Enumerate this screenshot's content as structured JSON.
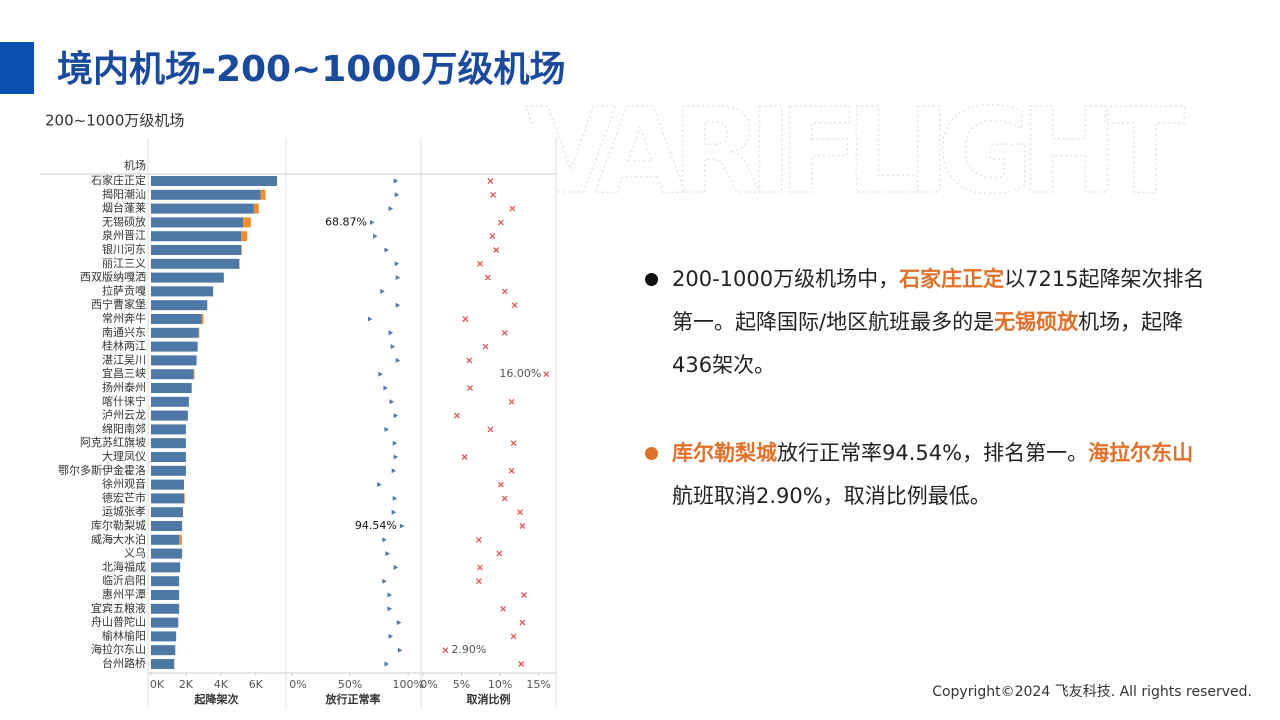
{
  "slide": {
    "title": "境内机场-200~1000万级机场",
    "watermark": "VARIFLIGHT",
    "copyright": "Copyright©2024 飞友科技. All rights reserved.",
    "bullets": [
      [
        {
          "text": "200-1000万级机场中，",
          "highlight": false
        },
        {
          "text": "石家庄正定",
          "highlight": true
        },
        {
          "text": "以7215起降架次排名第一。起降国际/地区航班最多的是",
          "highlight": false
        },
        {
          "text": "无锡硕放",
          "highlight": true
        },
        {
          "text": "机场，起降436架次。",
          "highlight": false
        }
      ],
      [
        {
          "text": "库尔勒梨城",
          "highlight": true
        },
        {
          "text": "放行正常率94.54%，排名第一。",
          "highlight": false
        },
        {
          "text": "海拉尔东山",
          "highlight": true
        },
        {
          "text": "航班取消2.90%，取消比例最低。",
          "highlight": false
        }
      ]
    ]
  },
  "chart_data": [
    {
      "type": "bar",
      "title": "200~1000万级机场",
      "category_header": "机场",
      "xlabel": "起降架次",
      "categories": [
        "石家庄正定",
        "揭阳潮汕",
        "烟台蓬莱",
        "无锡硕放",
        "泉州晋江",
        "银川河东",
        "丽江三义",
        "西双版纳嘎洒",
        "拉萨贡嘎",
        "西宁曹家堡",
        "常州奔牛",
        "南通兴东",
        "桂林两江",
        "湛江吴川",
        "宜昌三峡",
        "扬州泰州",
        "喀什徕宁",
        "泸州云龙",
        "绵阳南郊",
        "阿克苏红旗坡",
        "大理凤仪",
        "鄂尔多斯伊金霍洛",
        "徐州观音",
        "德宏芒市",
        "运城张孝",
        "库尔勒梨城",
        "威海大水泊",
        "义乌",
        "北海福成",
        "临沂启阳",
        "惠州平潭",
        "宜宾五粮液",
        "舟山普陀山",
        "榆林榆阳",
        "海拉尔东山",
        "台州路桥"
      ],
      "series": [
        {
          "color": "#4e79a7",
          "values": [
            7215,
            6280,
            5890,
            5280,
            5170,
            5170,
            5060,
            4170,
            3560,
            3220,
            2890,
            2720,
            2670,
            2610,
            2440,
            2330,
            2170,
            2110,
            2000,
            2000,
            2000,
            2000,
            1890,
            1890,
            1830,
            1780,
            1610,
            1780,
            1670,
            1610,
            1610,
            1610,
            1560,
            1440,
            1390,
            1330
          ]
        },
        {
          "color": "#f28e2b",
          "values": [
            0,
            280,
            280,
            436,
            330,
            30,
            0,
            0,
            0,
            0,
            110,
            50,
            0,
            0,
            50,
            0,
            0,
            0,
            0,
            0,
            0,
            0,
            0,
            40,
            0,
            0,
            170,
            0,
            0,
            0,
            0,
            0,
            0,
            0,
            0,
            0
          ]
        }
      ],
      "xlim": [
        0,
        7500
      ],
      "xticks": [
        {
          "value": 0,
          "label": "0K"
        },
        {
          "value": 2000,
          "label": "2K"
        },
        {
          "value": 4000,
          "label": "4K"
        },
        {
          "value": 6000,
          "label": "6K"
        }
      ]
    },
    {
      "type": "dot",
      "xlabel": "放行正常率",
      "color": "#4e79a7",
      "values": [
        89.2,
        90.1,
        84.8,
        68.87,
        71.5,
        81.3,
        90.1,
        91.0,
        77.7,
        91.0,
        67.1,
        84.8,
        86.6,
        91.0,
        76.0,
        80.4,
        85.7,
        89.2,
        81.3,
        88.4,
        89.2,
        87.5,
        75.1,
        88.4,
        87.5,
        94.54,
        79.5,
        82.2,
        89.2,
        79.5,
        83.9,
        83.9,
        91.9,
        84.8,
        92.8,
        81.3
      ],
      "value_labels": [
        null,
        null,
        null,
        "68.87%",
        null,
        null,
        null,
        null,
        null,
        null,
        null,
        null,
        null,
        null,
        null,
        null,
        null,
        null,
        null,
        null,
        null,
        null,
        null,
        null,
        null,
        "94.54%",
        null,
        null,
        null,
        null,
        null,
        null,
        null,
        null,
        null,
        null
      ],
      "xlim": [
        0,
        105
      ],
      "xticks": [
        {
          "value": 0,
          "label": "0%"
        },
        {
          "value": 50,
          "label": "50%"
        },
        {
          "value": 100,
          "label": "100%"
        }
      ]
    },
    {
      "type": "cross",
      "xlabel": "取消比例",
      "color": "#e15759",
      "values": [
        8.75,
        9.1,
        11.6,
        10.1,
        9.0,
        9.5,
        7.4,
        8.4,
        10.6,
        11.9,
        5.5,
        10.6,
        8.1,
        6.0,
        16.0,
        6.1,
        11.5,
        4.4,
        8.75,
        11.75,
        5.4,
        11.5,
        10.1,
        10.6,
        12.6,
        12.9,
        7.25,
        9.9,
        7.4,
        7.25,
        13.1,
        10.4,
        12.9,
        11.75,
        2.9,
        12.75
      ],
      "value_labels": [
        null,
        null,
        null,
        null,
        null,
        null,
        null,
        null,
        null,
        null,
        null,
        null,
        null,
        null,
        "16.00%",
        null,
        null,
        null,
        null,
        null,
        null,
        null,
        null,
        null,
        null,
        null,
        null,
        null,
        null,
        null,
        null,
        null,
        null,
        null,
        "2.90%",
        null
      ],
      "xlim": [
        0,
        17
      ],
      "xticks": [
        {
          "value": 0,
          "label": "0%"
        },
        {
          "value": 5,
          "label": "5%"
        },
        {
          "value": 10,
          "label": "10%"
        },
        {
          "value": 15,
          "label": "15%"
        }
      ]
    }
  ]
}
